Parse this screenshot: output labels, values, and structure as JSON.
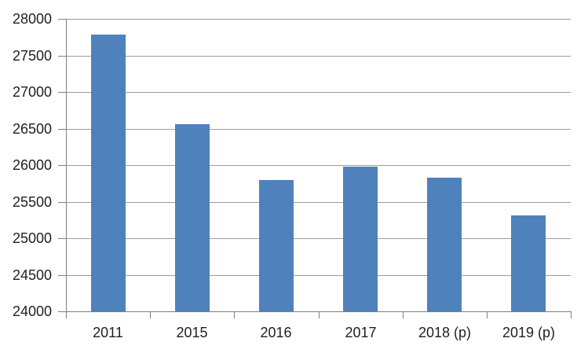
{
  "chart_data": {
    "type": "bar",
    "categories": [
      "2011",
      "2015",
      "2016",
      "2017",
      "2018 (p)",
      "2019 (p)"
    ],
    "values": [
      27780,
      26560,
      25800,
      25980,
      25830,
      25310
    ],
    "title": "",
    "xlabel": "",
    "ylabel": "",
    "ylim": [
      24000,
      28000
    ],
    "ytick_step": 500,
    "ytick_labels": [
      "24000",
      "24500",
      "25000",
      "25500",
      "26000",
      "26500",
      "27000",
      "27500",
      "28000"
    ],
    "grid": "horizontal",
    "legend_position": "none",
    "bar_color": "#4f81bd",
    "gridline_color": "#9c9c9c",
    "axis_color": "#808080",
    "text_color": "#1f1f1f"
  }
}
